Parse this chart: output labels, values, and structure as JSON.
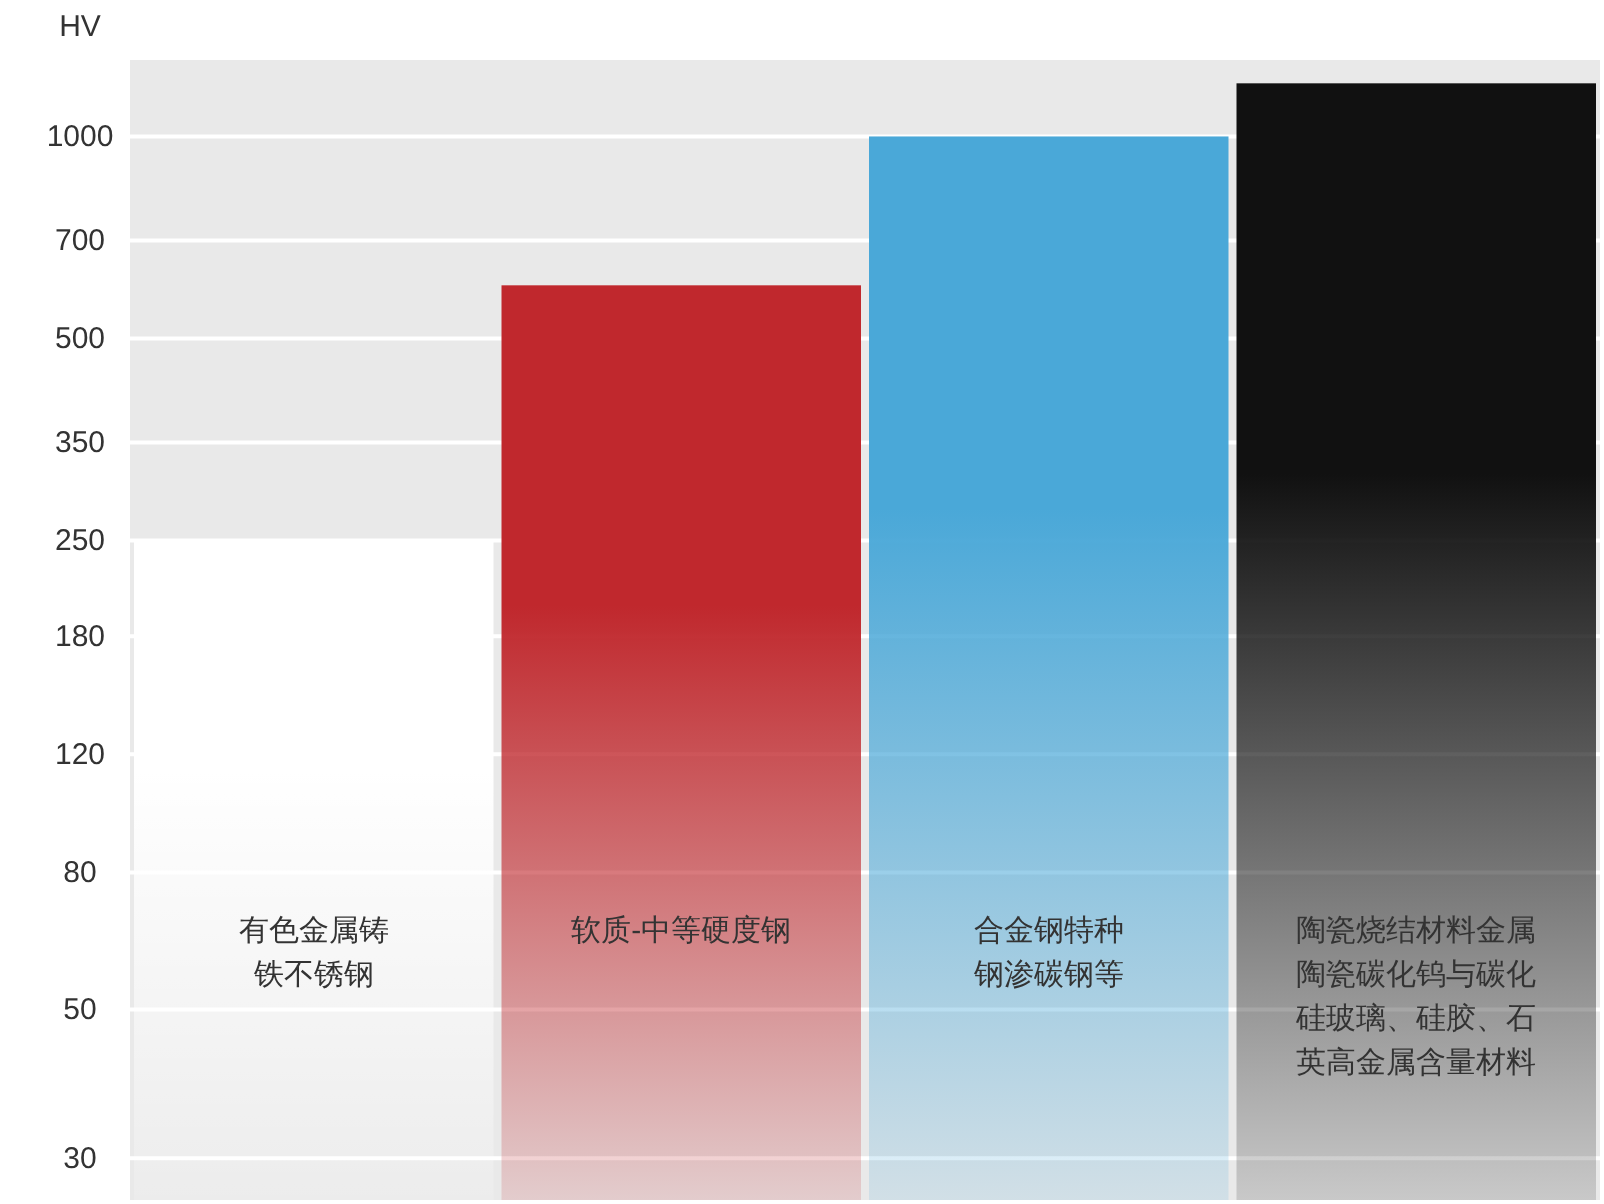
{
  "chart_data": {
    "type": "bar",
    "ylabel": "HV",
    "categories": [
      "有色金属铸铁不锈钢",
      "软质-中等硬度钢",
      "合金钢特种钢渗碳钢等",
      "陶瓷烧结材料金属陶瓷碳化钨与碳化硅玻璃、硅胶、石英高金属含量材料"
    ],
    "values": [
      250,
      600,
      1000,
      1200
    ],
    "colors": [
      "#ffffff",
      "#c0282d",
      "#4aa8d8",
      "#111111"
    ],
    "log": true,
    "ylim": [
      26,
      1300
    ],
    "yticks": [
      30,
      50,
      80,
      120,
      180,
      250,
      350,
      500,
      700,
      1000
    ],
    "grid": "y"
  }
}
